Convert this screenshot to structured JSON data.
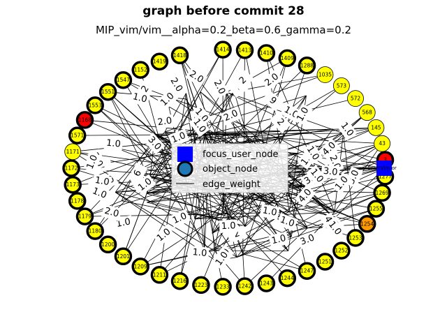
{
  "title": "graph before commit 28",
  "subtitle": "MIP_vim/vim__alpha=0.2_beta=0.6_gamma=0.2",
  "legend": {
    "items": [
      {
        "label": "focus_user_node",
        "marker": "square",
        "color": "#0000ff"
      },
      {
        "label": "object_node",
        "marker": "circle",
        "color": "#1f77b4"
      },
      {
        "label": "edge_weight",
        "marker": "line",
        "color": "#000000"
      }
    ]
  },
  "edge_label_text": "1.0",
  "edge_label_samples": [
    "1.0",
    "2.0",
    "1.0",
    "2",
    "3.0",
    "1.0",
    "4.0",
    "1.0",
    "2.0",
    "1.0",
    "1",
    "2",
    "1.0",
    "3.0",
    "1.0",
    "2.0",
    "1.0",
    "6",
    "8",
    "1.0",
    "2",
    "1.0",
    "3.0",
    "4.0",
    "1.0",
    "2.0",
    "1.0",
    "1.0",
    "2.0",
    "1.0",
    "1.0",
    "1.0",
    "2.0",
    "3.0",
    "1.0",
    "1.0",
    "2",
    "1.0",
    "1.0",
    "1.0",
    "2.0",
    "1.0",
    "1.0",
    "9",
    "1.0",
    "2.0",
    "3.0",
    "1.0",
    "1.0",
    "1.0",
    "2.0",
    "1.0",
    "1.0",
    "1.0",
    "2",
    "1.0",
    "4.0",
    "1.0"
  ],
  "nodes": [
    {
      "id": "1414",
      "color": "#ffff00",
      "bold": true
    },
    {
      "id": "1413",
      "color": "#ffff00",
      "bold": true
    },
    {
      "id": "1410",
      "color": "#ffff00",
      "bold": true
    },
    {
      "id": "1409",
      "color": "#ffff00",
      "bold": true
    },
    {
      "id": "1288",
      "color": "#ffff00",
      "bold": true
    },
    {
      "id": "1035",
      "color": "#ffff00",
      "bold": false
    },
    {
      "id": "573",
      "color": "#ffff00",
      "bold": false
    },
    {
      "id": "572",
      "color": "#ffff00",
      "bold": false
    },
    {
      "id": "568",
      "color": "#ffff00",
      "bold": false
    },
    {
      "id": "145",
      "color": "#ffff00",
      "bold": false
    },
    {
      "id": "43",
      "color": "#ffff00",
      "bold": false
    },
    {
      "id": "3",
      "color": "#ff0000",
      "bold": true
    },
    {
      "id": "1277",
      "color": "#ffff00",
      "bold": true
    },
    {
      "id": "1269",
      "color": "#ffff00",
      "bold": true
    },
    {
      "id": "1255",
      "color": "#ffff00",
      "bold": true
    },
    {
      "id": "1254",
      "color": "#ff9900",
      "bold": true
    },
    {
      "id": "1253",
      "color": "#ffff00",
      "bold": true
    },
    {
      "id": "1252",
      "color": "#ffff00",
      "bold": true
    },
    {
      "id": "1251",
      "color": "#ffff00",
      "bold": true
    },
    {
      "id": "1247",
      "color": "#ffff00",
      "bold": true
    },
    {
      "id": "1244",
      "color": "#ffff00",
      "bold": true
    },
    {
      "id": "1243",
      "color": "#ffff00",
      "bold": true
    },
    {
      "id": "1242",
      "color": "#ffff00",
      "bold": true
    },
    {
      "id": "1233",
      "color": "#ffff00",
      "bold": true
    },
    {
      "id": "1223",
      "color": "#ffff00",
      "bold": true
    },
    {
      "id": "1216",
      "color": "#ffff00",
      "bold": true
    },
    {
      "id": "1211",
      "color": "#ffff00",
      "bold": true
    },
    {
      "id": "1209",
      "color": "#ffff00",
      "bold": true
    },
    {
      "id": "1201",
      "color": "#ffff00",
      "bold": true
    },
    {
      "id": "1200",
      "color": "#ffff00",
      "bold": true
    },
    {
      "id": "1180",
      "color": "#ffff00",
      "bold": true
    },
    {
      "id": "1179",
      "color": "#ffff00",
      "bold": true
    },
    {
      "id": "1178",
      "color": "#ffff00",
      "bold": true
    },
    {
      "id": "1173",
      "color": "#ffff00",
      "bold": true
    },
    {
      "id": "1172",
      "color": "#ffff00",
      "bold": true
    },
    {
      "id": "1171",
      "color": "#ffff00",
      "bold": false
    },
    {
      "id": "1571",
      "color": "#ffff00",
      "bold": true
    },
    {
      "id": "1168",
      "color": "#ff0000",
      "bold": true
    },
    {
      "id": "1553",
      "color": "#ffff00",
      "bold": true
    },
    {
      "id": "1551",
      "color": "#ffff00",
      "bold": true
    },
    {
      "id": "1547",
      "color": "#ffff00",
      "bold": true
    },
    {
      "id": "1152",
      "color": "#ffff00",
      "bold": true
    },
    {
      "id": "1419",
      "color": "#ffff00",
      "bold": true
    },
    {
      "id": "1418",
      "color": "#ffff00",
      "bold": true
    }
  ],
  "focus_node": {
    "id": "BramVim.or",
    "color": "#0000ff"
  }
}
